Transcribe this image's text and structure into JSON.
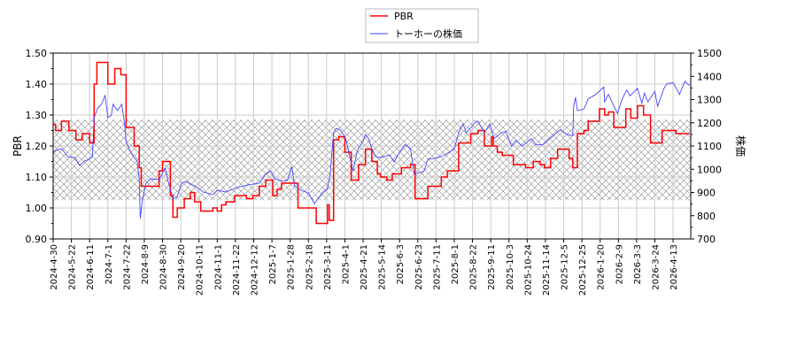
{
  "chart_data": {
    "type": "line",
    "title": "",
    "xlabel": "",
    "ylabel": "PBR",
    "y2label": "株価",
    "ylim": [
      0.9,
      1.5
    ],
    "y2lim": [
      700,
      1500
    ],
    "yticks": [
      "0.90",
      "1.00",
      "1.10",
      "1.20",
      "1.30",
      "1.40",
      "1.50"
    ],
    "y2ticks": [
      "700",
      "800",
      "900",
      "1000",
      "1100",
      "1200",
      "1300",
      "1400",
      "1500"
    ],
    "xticks": [
      {
        "date": "2024-04-30",
        "label": "2024-4-30"
      },
      {
        "date": "2024-05-22",
        "label": "2024-5-22"
      },
      {
        "date": "2024-06-11",
        "label": "2024-6-11"
      },
      {
        "date": "2024-07-01",
        "label": "2024-7-1"
      },
      {
        "date": "2024-07-22",
        "label": "2024-7-22"
      },
      {
        "date": "2024-08-09",
        "label": "2024-8-9"
      },
      {
        "date": "2024-08-30",
        "label": "2024-8-30"
      },
      {
        "date": "2024-09-20",
        "label": "2024-9-20"
      },
      {
        "date": "2024-10-11",
        "label": "2024-10-11"
      },
      {
        "date": "2024-11-01",
        "label": "2024-11-1"
      },
      {
        "date": "2024-11-22",
        "label": "2024-11-22"
      },
      {
        "date": "2024-12-12",
        "label": "2024-12-12"
      },
      {
        "date": "2025-01-07",
        "label": "2025-1-7"
      },
      {
        "date": "2025-01-28",
        "label": "2025-1-28"
      },
      {
        "date": "2025-02-18",
        "label": "2025-2-18"
      },
      {
        "date": "2025-03-11",
        "label": "2025-3-11"
      },
      {
        "date": "2025-04-01",
        "label": "2025-4-1"
      },
      {
        "date": "2025-04-21",
        "label": "2025-4-21"
      },
      {
        "date": "2025-05-14",
        "label": "2025-5-14"
      },
      {
        "date": "2025-06-03",
        "label": "2025-6-3"
      },
      {
        "date": "2025-06-23",
        "label": "2025-6-23"
      },
      {
        "date": "2025-07-11",
        "label": "2025-7-11"
      },
      {
        "date": "2025-08-01",
        "label": "2025-8-1"
      },
      {
        "date": "2025-08-22",
        "label": "2025-8-22"
      },
      {
        "date": "2025-09-11",
        "label": "2025-9-11"
      },
      {
        "date": "2025-10-03",
        "label": "2025-10-3"
      },
      {
        "date": "2025-10-24",
        "label": "2025-10-24"
      },
      {
        "date": "2025-11-14",
        "label": "2025-11-14"
      },
      {
        "date": "2025-12-05",
        "label": "2025-12-5"
      },
      {
        "date": "2025-12-25",
        "label": "2025-12-25"
      },
      {
        "date": "2026-01-20",
        "label": "2026-1-20"
      },
      {
        "date": "2026-02-09",
        "label": "2026-2-9"
      },
      {
        "date": "2026-03-03",
        "label": "2026-3-3"
      },
      {
        "date": "2026-03-24",
        "label": "2026-3-24"
      },
      {
        "date": "2026-04-13",
        "label": "2026-4-13"
      }
    ],
    "xlim": [
      "2024-04-30",
      "2026-05-01"
    ],
    "grid": true,
    "legend": {
      "placement": "top-center"
    },
    "band": {
      "axis": "PBR",
      "range": [
        1.025,
        1.285
      ],
      "style": "crosshatch"
    },
    "series": [
      {
        "name": "PBR",
        "axis": "left",
        "color": "#ff0000",
        "step": true,
        "points": [
          [
            "2024-04-30",
            1.27
          ],
          [
            "2024-05-03",
            1.25
          ],
          [
            "2024-05-10",
            1.28
          ],
          [
            "2024-05-19",
            1.25
          ],
          [
            "2024-05-27",
            1.22
          ],
          [
            "2024-06-03",
            1.24
          ],
          [
            "2024-06-11",
            1.21
          ],
          [
            "2024-06-16",
            1.4
          ],
          [
            "2024-06-19",
            1.47
          ],
          [
            "2024-07-01",
            1.4
          ],
          [
            "2024-07-09",
            1.45
          ],
          [
            "2024-07-16",
            1.43
          ],
          [
            "2024-07-22",
            1.26
          ],
          [
            "2024-07-30",
            1.2
          ],
          [
            "2024-08-04",
            1.13
          ],
          [
            "2024-08-06",
            1.07
          ],
          [
            "2024-08-26",
            1.12
          ],
          [
            "2024-08-30",
            1.15
          ],
          [
            "2024-09-08",
            1.04
          ],
          [
            "2024-09-11",
            0.97
          ],
          [
            "2024-09-16",
            1.0
          ],
          [
            "2024-09-24",
            1.03
          ],
          [
            "2024-10-01",
            1.05
          ],
          [
            "2024-10-06",
            1.02
          ],
          [
            "2024-10-13",
            0.99
          ],
          [
            "2024-10-27",
            1.0
          ],
          [
            "2024-11-01",
            0.99
          ],
          [
            "2024-11-06",
            1.01
          ],
          [
            "2024-11-11",
            1.02
          ],
          [
            "2024-11-21",
            1.04
          ],
          [
            "2024-12-04",
            1.03
          ],
          [
            "2024-12-11",
            1.04
          ],
          [
            "2024-12-20",
            1.07
          ],
          [
            "2024-12-29",
            1.09
          ],
          [
            "2025-01-08",
            1.04
          ],
          [
            "2025-01-13",
            1.06
          ],
          [
            "2025-01-18",
            1.08
          ],
          [
            "2025-02-06",
            1.0
          ],
          [
            "2025-02-27",
            0.95
          ],
          [
            "2025-03-12",
            1.01
          ],
          [
            "2025-03-14",
            0.96
          ],
          [
            "2025-03-19",
            1.22
          ],
          [
            "2025-03-25",
            1.23
          ],
          [
            "2025-04-01",
            1.18
          ],
          [
            "2025-04-08",
            1.09
          ],
          [
            "2025-04-16",
            1.14
          ],
          [
            "2025-04-24",
            1.19
          ],
          [
            "2025-05-02",
            1.15
          ],
          [
            "2025-05-09",
            1.11
          ],
          [
            "2025-05-13",
            1.1
          ],
          [
            "2025-05-20",
            1.09
          ],
          [
            "2025-05-26",
            1.11
          ],
          [
            "2025-06-05",
            1.13
          ],
          [
            "2025-06-15",
            1.14
          ],
          [
            "2025-06-20",
            1.03
          ],
          [
            "2025-07-03",
            1.07
          ],
          [
            "2025-07-17",
            1.1
          ],
          [
            "2025-07-24",
            1.12
          ],
          [
            "2025-08-06",
            1.21
          ],
          [
            "2025-08-20",
            1.24
          ],
          [
            "2025-08-28",
            1.25
          ],
          [
            "2025-09-04",
            1.2
          ],
          [
            "2025-09-12",
            1.23
          ],
          [
            "2025-09-14",
            1.2
          ],
          [
            "2025-09-19",
            1.18
          ],
          [
            "2025-09-25",
            1.17
          ],
          [
            "2025-10-08",
            1.14
          ],
          [
            "2025-10-22",
            1.13
          ],
          [
            "2025-10-31",
            1.15
          ],
          [
            "2025-11-08",
            1.14
          ],
          [
            "2025-11-13",
            1.13
          ],
          [
            "2025-11-20",
            1.16
          ],
          [
            "2025-11-28",
            1.19
          ],
          [
            "2025-12-11",
            1.16
          ],
          [
            "2025-12-15",
            1.13
          ],
          [
            "2025-12-20",
            1.24
          ],
          [
            "2025-12-28",
            1.25
          ],
          [
            "2026-01-03",
            1.28
          ],
          [
            "2026-01-19",
            1.32
          ],
          [
            "2026-01-25",
            1.3
          ],
          [
            "2026-01-29",
            1.31
          ],
          [
            "2026-02-04",
            1.26
          ],
          [
            "2026-02-18",
            1.32
          ],
          [
            "2026-02-24",
            1.29
          ],
          [
            "2026-03-04",
            1.33
          ],
          [
            "2026-03-11",
            1.3
          ],
          [
            "2026-03-19",
            1.21
          ],
          [
            "2026-04-01",
            1.25
          ],
          [
            "2026-04-16",
            1.24
          ],
          [
            "2026-05-01",
            1.24
          ]
        ]
      },
      {
        "name": "トーホーの株価",
        "axis": "right",
        "color": "#4444ff",
        "step": false,
        "points": [
          [
            "2024-04-30",
            1068
          ],
          [
            "2024-05-03",
            1080
          ],
          [
            "2024-05-10",
            1089
          ],
          [
            "2024-05-18",
            1054
          ],
          [
            "2024-05-26",
            1050
          ],
          [
            "2024-05-31",
            1016
          ],
          [
            "2024-06-05",
            1035
          ],
          [
            "2024-06-10",
            1042
          ],
          [
            "2024-06-14",
            1054
          ],
          [
            "2024-06-16",
            1222
          ],
          [
            "2024-06-20",
            1264
          ],
          [
            "2024-06-24",
            1280
          ],
          [
            "2024-06-28",
            1317
          ],
          [
            "2024-07-01",
            1222
          ],
          [
            "2024-07-05",
            1233
          ],
          [
            "2024-07-07",
            1280
          ],
          [
            "2024-07-12",
            1253
          ],
          [
            "2024-07-17",
            1280
          ],
          [
            "2024-07-20",
            1204
          ],
          [
            "2024-07-22",
            1119
          ],
          [
            "2024-07-27",
            1069
          ],
          [
            "2024-07-30",
            1050
          ],
          [
            "2024-08-02",
            1035
          ],
          [
            "2024-08-04",
            955
          ],
          [
            "2024-08-05",
            788
          ],
          [
            "2024-08-07",
            865
          ],
          [
            "2024-08-11",
            940
          ],
          [
            "2024-08-16",
            959
          ],
          [
            "2024-08-26",
            955
          ],
          [
            "2024-09-02",
            1004
          ],
          [
            "2024-09-05",
            955
          ],
          [
            "2024-09-11",
            871
          ],
          [
            "2024-09-16",
            883
          ],
          [
            "2024-09-21",
            940
          ],
          [
            "2024-09-26",
            948
          ],
          [
            "2024-10-01",
            936
          ],
          [
            "2024-10-06",
            929
          ],
          [
            "2024-10-16",
            902
          ],
          [
            "2024-10-27",
            891
          ],
          [
            "2024-11-01",
            910
          ],
          [
            "2024-11-11",
            902
          ],
          [
            "2024-11-21",
            917
          ],
          [
            "2024-12-01",
            929
          ],
          [
            "2024-12-11",
            936
          ],
          [
            "2024-12-20",
            940
          ],
          [
            "2024-12-29",
            978
          ],
          [
            "2025-01-05",
            993
          ],
          [
            "2025-01-10",
            959
          ],
          [
            "2025-01-20",
            948
          ],
          [
            "2025-01-25",
            955
          ],
          [
            "2025-01-30",
            1012
          ],
          [
            "2025-02-02",
            929
          ],
          [
            "2025-02-09",
            910
          ],
          [
            "2025-02-18",
            898
          ],
          [
            "2025-02-25",
            852
          ],
          [
            "2025-03-02",
            879
          ],
          [
            "2025-03-07",
            902
          ],
          [
            "2025-03-12",
            917
          ],
          [
            "2025-03-15",
            978
          ],
          [
            "2025-03-19",
            1157
          ],
          [
            "2025-03-22",
            1176
          ],
          [
            "2025-03-27",
            1169
          ],
          [
            "2025-04-02",
            1131
          ],
          [
            "2025-04-07",
            1043
          ],
          [
            "2025-04-10",
            993
          ],
          [
            "2025-04-14",
            1069
          ],
          [
            "2025-04-16",
            1092
          ],
          [
            "2025-04-21",
            1119
          ],
          [
            "2025-04-24",
            1150
          ],
          [
            "2025-04-28",
            1131
          ],
          [
            "2025-05-02",
            1089
          ],
          [
            "2025-05-07",
            1054
          ],
          [
            "2025-05-13",
            1050
          ],
          [
            "2025-05-23",
            1062
          ],
          [
            "2025-05-28",
            1031
          ],
          [
            "2025-06-02",
            1068
          ],
          [
            "2025-06-09",
            1106
          ],
          [
            "2025-06-15",
            1087
          ],
          [
            "2025-06-19",
            979
          ],
          [
            "2025-06-29",
            992
          ],
          [
            "2025-07-03",
            1043
          ],
          [
            "2025-07-12",
            1049
          ],
          [
            "2025-07-21",
            1062
          ],
          [
            "2025-08-01",
            1087
          ],
          [
            "2025-08-06",
            1157
          ],
          [
            "2025-08-11",
            1195
          ],
          [
            "2025-08-15",
            1157
          ],
          [
            "2025-08-25",
            1202
          ],
          [
            "2025-08-28",
            1208
          ],
          [
            "2025-09-04",
            1157
          ],
          [
            "2025-09-10",
            1195
          ],
          [
            "2025-09-15",
            1132
          ],
          [
            "2025-09-24",
            1157
          ],
          [
            "2025-09-29",
            1163
          ],
          [
            "2025-10-06",
            1100
          ],
          [
            "2025-10-11",
            1125
          ],
          [
            "2025-10-18",
            1100
          ],
          [
            "2025-10-29",
            1132
          ],
          [
            "2025-11-03",
            1106
          ],
          [
            "2025-11-11",
            1106
          ],
          [
            "2025-11-21",
            1138
          ],
          [
            "2025-12-01",
            1170
          ],
          [
            "2025-12-08",
            1151
          ],
          [
            "2025-12-15",
            1144
          ],
          [
            "2025-12-16",
            1271
          ],
          [
            "2025-12-18",
            1309
          ],
          [
            "2025-12-20",
            1252
          ],
          [
            "2025-12-28",
            1259
          ],
          [
            "2026-01-03",
            1303
          ],
          [
            "2026-01-14",
            1322
          ],
          [
            "2026-01-24",
            1354
          ],
          [
            "2026-01-25",
            1290
          ],
          [
            "2026-01-29",
            1322
          ],
          [
            "2026-02-08",
            1240
          ],
          [
            "2026-02-13",
            1297
          ],
          [
            "2026-02-19",
            1341
          ],
          [
            "2026-02-23",
            1316
          ],
          [
            "2026-03-04",
            1348
          ],
          [
            "2026-03-09",
            1284
          ],
          [
            "2026-03-12",
            1328
          ],
          [
            "2026-03-16",
            1290
          ],
          [
            "2026-03-24",
            1335
          ],
          [
            "2026-03-27",
            1271
          ],
          [
            "2026-04-03",
            1348
          ],
          [
            "2026-04-06",
            1367
          ],
          [
            "2026-04-13",
            1373
          ],
          [
            "2026-04-20",
            1322
          ],
          [
            "2026-04-26",
            1379
          ],
          [
            "2026-05-01",
            1360
          ]
        ]
      }
    ]
  }
}
